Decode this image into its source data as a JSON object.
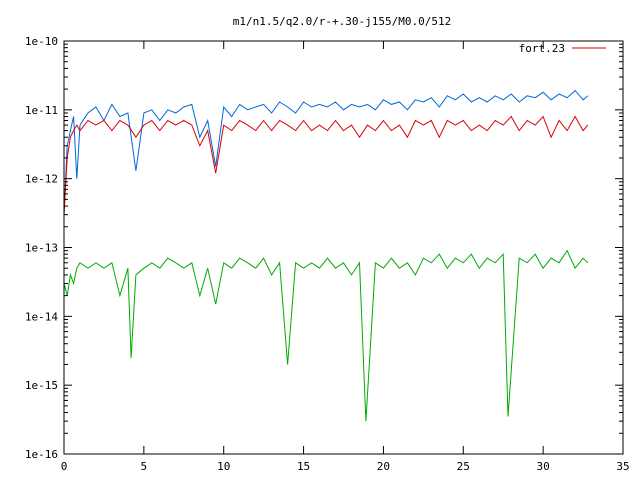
{
  "chart_data": {
    "type": "line",
    "title": "m1/n1.5/q2.0/r-+.30-j155/M0.0/512",
    "xlabel": "",
    "ylabel": "",
    "xlim": [
      0,
      35
    ],
    "ylim": [
      1e-16,
      1e-10
    ],
    "y_scale": "log",
    "grid": false,
    "legend_position": "top-right",
    "x_ticks": [
      0,
      5,
      10,
      15,
      20,
      25,
      30,
      35
    ],
    "x_tick_labels": [
      "0",
      "5",
      "10",
      "15",
      "20",
      "25",
      "30",
      "35"
    ],
    "y_ticks": [
      1e-16,
      1e-15,
      1e-14,
      1e-13,
      1e-12,
      1e-11,
      1e-10
    ],
    "y_tick_labels": [
      "1e-16",
      "1e-15",
      "1e-14",
      "1e-13",
      "1e-12",
      "1e-11",
      "1e-10"
    ],
    "series": [
      {
        "name": "",
        "color": "#0066dd",
        "x": [
          0.0,
          0.2,
          0.4,
          0.6,
          0.8,
          1.0,
          1.5,
          2.0,
          2.5,
          3.0,
          3.5,
          4.0,
          4.5,
          5.0,
          5.5,
          6.0,
          6.5,
          7.0,
          7.5,
          8.0,
          8.5,
          9.0,
          9.5,
          10.0,
          10.5,
          11.0,
          11.5,
          12.0,
          12.5,
          13.0,
          13.5,
          14.0,
          14.5,
          15.0,
          15.5,
          16.0,
          16.5,
          17.0,
          17.5,
          18.0,
          18.5,
          19.0,
          19.5,
          20.0,
          20.5,
          21.0,
          21.5,
          22.0,
          22.5,
          23.0,
          23.5,
          24.0,
          24.5,
          25.0,
          25.5,
          26.0,
          26.5,
          27.0,
          27.5,
          28.0,
          28.5,
          29.0,
          29.5,
          30.0,
          30.5,
          31.0,
          31.5,
          32.0,
          32.5,
          32.8
        ],
        "values": [
          3e-13,
          3e-12,
          5e-12,
          8e-12,
          1e-12,
          6e-12,
          9e-12,
          1.1e-11,
          7e-12,
          1.2e-11,
          8e-12,
          9e-12,
          1.3e-12,
          9e-12,
          1e-11,
          7e-12,
          1e-11,
          9e-12,
          1.1e-11,
          1.2e-11,
          4e-12,
          7e-12,
          1.5e-12,
          1.1e-11,
          8e-12,
          1.2e-11,
          1e-11,
          1.1e-11,
          1.2e-11,
          9e-12,
          1.3e-11,
          1.1e-11,
          9e-12,
          1.3e-11,
          1.1e-11,
          1.2e-11,
          1.1e-11,
          1.3e-11,
          1e-11,
          1.2e-11,
          1.1e-11,
          1.2e-11,
          1e-11,
          1.4e-11,
          1.2e-11,
          1.3e-11,
          1e-11,
          1.4e-11,
          1.3e-11,
          1.5e-11,
          1.1e-11,
          1.6e-11,
          1.4e-11,
          1.7e-11,
          1.3e-11,
          1.5e-11,
          1.3e-11,
          1.6e-11,
          1.4e-11,
          1.7e-11,
          1.3e-11,
          1.6e-11,
          1.5e-11,
          1.8e-11,
          1.4e-11,
          1.7e-11,
          1.5e-11,
          1.9e-11,
          1.4e-11,
          1.6e-11
        ]
      },
      {
        "name": "fort.23",
        "color": "#dd0000",
        "x": [
          0.0,
          0.2,
          0.4,
          0.6,
          0.8,
          1.0,
          1.5,
          2.0,
          2.5,
          3.0,
          3.5,
          4.0,
          4.5,
          5.0,
          5.5,
          6.0,
          6.5,
          7.0,
          7.5,
          8.0,
          8.5,
          9.0,
          9.5,
          10.0,
          10.5,
          11.0,
          11.5,
          12.0,
          12.5,
          13.0,
          13.5,
          14.0,
          14.5,
          15.0,
          15.5,
          16.0,
          16.5,
          17.0,
          17.5,
          18.0,
          18.5,
          19.0,
          19.5,
          20.0,
          20.5,
          21.0,
          21.5,
          22.0,
          22.5,
          23.0,
          23.5,
          24.0,
          24.5,
          25.0,
          25.5,
          26.0,
          26.5,
          27.0,
          27.5,
          28.0,
          28.5,
          29.0,
          29.5,
          30.0,
          30.5,
          31.0,
          31.5,
          32.0,
          32.5,
          32.8
        ],
        "values": [
          3e-13,
          2e-12,
          4e-12,
          5e-12,
          6e-12,
          5e-12,
          7e-12,
          6e-12,
          7e-12,
          5e-12,
          7e-12,
          6e-12,
          4e-12,
          6e-12,
          7e-12,
          5e-12,
          7e-12,
          6e-12,
          7e-12,
          6e-12,
          3e-12,
          5e-12,
          1.2e-12,
          6e-12,
          5e-12,
          7e-12,
          6e-12,
          5e-12,
          7e-12,
          5e-12,
          7e-12,
          6e-12,
          5e-12,
          7e-12,
          5e-12,
          6e-12,
          5e-12,
          7e-12,
          5e-12,
          6e-12,
          4e-12,
          6e-12,
          5e-12,
          7e-12,
          5e-12,
          6e-12,
          4e-12,
          7e-12,
          6e-12,
          7e-12,
          4e-12,
          7e-12,
          6e-12,
          7e-12,
          5e-12,
          6e-12,
          5e-12,
          7e-12,
          6e-12,
          8e-12,
          5e-12,
          7e-12,
          6e-12,
          8e-12,
          4e-12,
          7e-12,
          5e-12,
          8e-12,
          5e-12,
          6e-12
        ]
      },
      {
        "name": "",
        "color": "#00aa00",
        "x": [
          0.0,
          0.2,
          0.4,
          0.6,
          0.8,
          1.0,
          1.5,
          2.0,
          2.5,
          3.0,
          3.5,
          4.0,
          4.2,
          4.5,
          5.0,
          5.5,
          6.0,
          6.5,
          7.0,
          7.5,
          8.0,
          8.5,
          9.0,
          9.5,
          10.0,
          10.5,
          11.0,
          11.5,
          12.0,
          12.5,
          13.0,
          13.5,
          14.0,
          14.5,
          15.0,
          15.5,
          16.0,
          16.5,
          17.0,
          17.5,
          18.0,
          18.5,
          18.9,
          19.5,
          20.0,
          20.5,
          21.0,
          21.5,
          22.0,
          22.5,
          23.0,
          23.5,
          24.0,
          24.5,
          25.0,
          25.5,
          26.0,
          26.5,
          27.0,
          27.5,
          27.8,
          28.5,
          29.0,
          29.5,
          30.0,
          30.5,
          31.0,
          31.5,
          32.0,
          32.5,
          32.8
        ],
        "values": [
          3e-14,
          2e-14,
          4e-14,
          3e-14,
          5e-14,
          6e-14,
          5e-14,
          6e-14,
          5e-14,
          6e-14,
          2e-14,
          5e-14,
          2.5e-15,
          4e-14,
          5e-14,
          6e-14,
          5e-14,
          7e-14,
          6e-14,
          5e-14,
          6e-14,
          2e-14,
          5e-14,
          1.5e-14,
          6e-14,
          5e-14,
          7e-14,
          6e-14,
          5e-14,
          7e-14,
          4e-14,
          6e-14,
          2e-15,
          6e-14,
          5e-14,
          6e-14,
          5e-14,
          7e-14,
          5e-14,
          6e-14,
          4e-14,
          6e-14,
          3e-16,
          6e-14,
          5e-14,
          7e-14,
          5e-14,
          6e-14,
          4e-14,
          7e-14,
          6e-14,
          8e-14,
          5e-14,
          7e-14,
          6e-14,
          8e-14,
          5e-14,
          7e-14,
          6e-14,
          8e-14,
          3.5e-16,
          7e-14,
          6e-14,
          8e-14,
          5e-14,
          7e-14,
          6e-14,
          9e-14,
          5e-14,
          7e-14,
          6e-14
        ]
      }
    ]
  }
}
